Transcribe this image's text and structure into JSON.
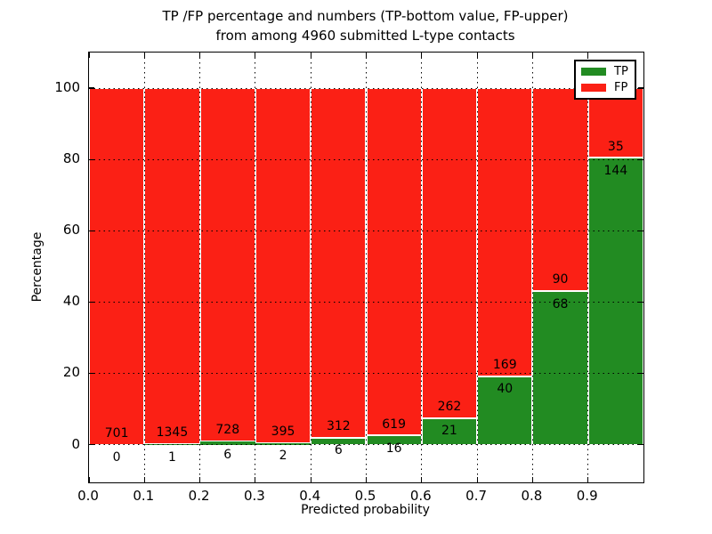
{
  "title": {
    "line1": "TP /FP percentage and numbers (TP-bottom value, FP-upper)",
    "line2": "from among 4960 submitted L-type contacts"
  },
  "axes": {
    "ylabel": "Percentage",
    "xlabel": "Predicted probability",
    "ytick_labels": [
      "0",
      "20",
      "40",
      "60",
      "80",
      "100"
    ],
    "ytick_values": [
      0,
      20,
      40,
      60,
      80,
      100
    ],
    "xtick_labels": [
      "0.0",
      "0.1",
      "0.2",
      "0.3",
      "0.4",
      "0.5",
      "0.6",
      "0.7",
      "0.8",
      "0.9"
    ],
    "xlim": [
      0.0,
      1.0
    ],
    "ylim": [
      -10.6,
      110
    ],
    "grid": "dotted"
  },
  "legend": {
    "position": "upper-right",
    "items": [
      {
        "label": "TP",
        "color": "#228B22"
      },
      {
        "label": "FP",
        "color": "#fb2015"
      }
    ]
  },
  "chart_data": {
    "type": "bar",
    "stacked": true,
    "normalized_to_percent": 100,
    "title": "TP /FP percentage and numbers (TP-bottom value, FP-upper) from among 4960 submitted L-type contacts",
    "xlabel": "Predicted probability",
    "ylabel": "Percentage",
    "total_contacts": 4960,
    "bin_width": 0.1,
    "bins": [
      "0.0-0.1",
      "0.1-0.2",
      "0.2-0.3",
      "0.3-0.4",
      "0.4-0.5",
      "0.5-0.6",
      "0.6-0.7",
      "0.7-0.8",
      "0.8-0.9",
      "0.9-1.0"
    ],
    "series": [
      {
        "name": "TP",
        "counts": [
          0,
          1,
          6,
          2,
          6,
          16,
          21,
          40,
          68,
          144
        ]
      },
      {
        "name": "FP",
        "counts": [
          701,
          1345,
          728,
          395,
          312,
          619,
          262,
          169,
          90,
          35
        ]
      }
    ],
    "tp_percent_of_bin": [
      0.0,
      0.1,
      0.8,
      0.5,
      1.9,
      2.5,
      7.4,
      19.1,
      43.0,
      80.4
    ],
    "ylim": [
      -10.6,
      110
    ],
    "legend_position": "upper right"
  },
  "colors": {
    "tp": "#228B22",
    "fp": "#fb2015",
    "bar_edge": "#ffffff",
    "grid": "#000000",
    "spine": "#000000",
    "background": "#ffffff",
    "text": "#000000"
  }
}
